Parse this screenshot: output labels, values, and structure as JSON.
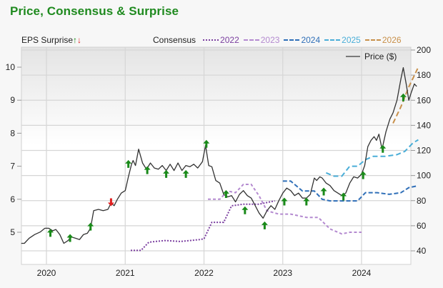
{
  "title": "Price, Consensus & Surprise",
  "legend": {
    "eps_label": "EPS Surprise",
    "eps_up_icon": "↑",
    "eps_down_icon": "↓",
    "consensus_label": "Consensus",
    "consensus_items": [
      {
        "label": "2022",
        "color": "#7b3fa0",
        "dash": "2,2"
      },
      {
        "label": "2023",
        "color": "#b48ad0",
        "dash": "4,3"
      },
      {
        "label": "2024",
        "color": "#2f6fb8",
        "dash": "6,3"
      },
      {
        "label": "2025",
        "color": "#4aaed8",
        "dash": "7,4"
      },
      {
        "label": "2026",
        "color": "#c8904a",
        "dash": "7,4"
      }
    ],
    "price_label": "Price ($)"
  },
  "colors": {
    "title": "#1f8a1f",
    "price": "#333333",
    "eps_up": "#1a8a1a",
    "eps_down": "#e02020",
    "grid": "#d4d4d4"
  },
  "chart_data": {
    "type": "line",
    "title": "Price, Consensus & Surprise",
    "xlabel": "",
    "ylabel_left": "EPS",
    "ylabel_right": "Price ($)",
    "x_ticks": [
      "2020",
      "2021",
      "2022",
      "2023",
      "2024"
    ],
    "y_left_ticks": [
      5,
      6,
      7,
      8,
      9,
      10
    ],
    "y_right_ticks": [
      40,
      60,
      80,
      100,
      120,
      140,
      160,
      180,
      200
    ],
    "xlim": [
      2019.68,
      2024.72
    ],
    "ylim_right": [
      30,
      200
    ],
    "ylim_left": [
      4.2,
      10.5
    ],
    "grid": true,
    "price": {
      "name": "Price ($)",
      "points": [
        [
          2019.68,
          46
        ],
        [
          2019.72,
          46
        ],
        [
          2019.78,
          50
        ],
        [
          2019.85,
          53
        ],
        [
          2019.92,
          55
        ],
        [
          2019.98,
          58
        ],
        [
          2020.03,
          58
        ],
        [
          2020.08,
          56
        ],
        [
          2020.12,
          57
        ],
        [
          2020.17,
          53
        ],
        [
          2020.22,
          46
        ],
        [
          2020.27,
          48
        ],
        [
          2020.32,
          51
        ],
        [
          2020.37,
          50
        ],
        [
          2020.42,
          49
        ],
        [
          2020.47,
          53
        ],
        [
          2020.52,
          54
        ],
        [
          2020.56,
          58
        ],
        [
          2020.6,
          72
        ],
        [
          2020.66,
          73
        ],
        [
          2020.72,
          72
        ],
        [
          2020.78,
          73
        ],
        [
          2020.82,
          78
        ],
        [
          2020.86,
          76
        ],
        [
          2020.9,
          81
        ],
        [
          2020.95,
          86
        ],
        [
          2021.0,
          88
        ],
        [
          2021.04,
          99
        ],
        [
          2021.08,
          109
        ],
        [
          2021.1,
          112
        ],
        [
          2021.13,
          108
        ],
        [
          2021.17,
          121
        ],
        [
          2021.22,
          110
        ],
        [
          2021.27,
          105
        ],
        [
          2021.32,
          110
        ],
        [
          2021.37,
          106
        ],
        [
          2021.42,
          105
        ],
        [
          2021.47,
          108
        ],
        [
          2021.52,
          104
        ],
        [
          2021.57,
          109
        ],
        [
          2021.62,
          104
        ],
        [
          2021.67,
          110
        ],
        [
          2021.72,
          104
        ],
        [
          2021.77,
          108
        ],
        [
          2021.82,
          107
        ],
        [
          2021.87,
          109
        ],
        [
          2021.92,
          106
        ],
        [
          2021.98,
          111
        ],
        [
          2022.02,
          124
        ],
        [
          2022.06,
          108
        ],
        [
          2022.1,
          107
        ],
        [
          2022.15,
          96
        ],
        [
          2022.2,
          94
        ],
        [
          2022.25,
          85
        ],
        [
          2022.3,
          83
        ],
        [
          2022.35,
          84
        ],
        [
          2022.4,
          79
        ],
        [
          2022.45,
          85
        ],
        [
          2022.5,
          88
        ],
        [
          2022.55,
          84
        ],
        [
          2022.6,
          82
        ],
        [
          2022.65,
          76
        ],
        [
          2022.7,
          70
        ],
        [
          2022.75,
          66
        ],
        [
          2022.8,
          72
        ],
        [
          2022.85,
          76
        ],
        [
          2022.9,
          73
        ],
        [
          2022.95,
          80
        ],
        [
          2023.0,
          86
        ],
        [
          2023.05,
          90
        ],
        [
          2023.1,
          88
        ],
        [
          2023.15,
          84
        ],
        [
          2023.2,
          86
        ],
        [
          2023.25,
          82
        ],
        [
          2023.3,
          82
        ],
        [
          2023.35,
          85
        ],
        [
          2023.4,
          98
        ],
        [
          2023.43,
          96
        ],
        [
          2023.47,
          99
        ],
        [
          2023.5,
          98
        ],
        [
          2023.55,
          94
        ],
        [
          2023.6,
          92
        ],
        [
          2023.65,
          88
        ],
        [
          2023.7,
          86
        ],
        [
          2023.75,
          84
        ],
        [
          2023.8,
          86
        ],
        [
          2023.85,
          94
        ],
        [
          2023.9,
          99
        ],
        [
          2023.95,
          98
        ],
        [
          2024.0,
          101
        ],
        [
          2024.04,
          108
        ],
        [
          2024.08,
          123
        ],
        [
          2024.12,
          128
        ],
        [
          2024.16,
          131
        ],
        [
          2024.19,
          128
        ],
        [
          2024.22,
          133
        ],
        [
          2024.26,
          121
        ],
        [
          2024.31,
          135
        ],
        [
          2024.36,
          145
        ],
        [
          2024.4,
          150
        ],
        [
          2024.45,
          160
        ],
        [
          2024.5,
          177
        ],
        [
          2024.53,
          186
        ],
        [
          2024.57,
          172
        ],
        [
          2024.6,
          160
        ],
        [
          2024.63,
          166
        ],
        [
          2024.67,
          173
        ],
        [
          2024.7,
          171
        ]
      ]
    },
    "consensus": [
      {
        "name": "2022",
        "points": [
          [
            2021.07,
            4.45
          ],
          [
            2021.2,
            4.45
          ],
          [
            2021.3,
            4.7
          ],
          [
            2021.5,
            4.75
          ],
          [
            2021.7,
            4.72
          ],
          [
            2021.95,
            4.78
          ],
          [
            2022.0,
            4.8
          ],
          [
            2022.1,
            5.3
          ],
          [
            2022.25,
            5.3
          ],
          [
            2022.35,
            5.8
          ],
          [
            2022.5,
            5.85
          ],
          [
            2022.7,
            5.85
          ],
          [
            2022.9,
            5.95
          ]
        ]
      },
      {
        "name": "2023",
        "points": [
          [
            2022.05,
            6.0
          ],
          [
            2022.2,
            6.0
          ],
          [
            2022.3,
            6.25
          ],
          [
            2022.4,
            6.2
          ],
          [
            2022.5,
            6.45
          ],
          [
            2022.6,
            6.45
          ],
          [
            2022.7,
            6.1
          ],
          [
            2022.8,
            5.65
          ],
          [
            2022.95,
            5.55
          ],
          [
            2023.1,
            5.55
          ],
          [
            2023.3,
            5.45
          ],
          [
            2023.45,
            5.45
          ],
          [
            2023.6,
            5.1
          ],
          [
            2023.75,
            4.95
          ],
          [
            2023.85,
            5.0
          ],
          [
            2024.0,
            5.0
          ]
        ]
      },
      {
        "name": "2024",
        "points": [
          [
            2023.0,
            6.55
          ],
          [
            2023.1,
            6.55
          ],
          [
            2023.25,
            6.25
          ],
          [
            2023.4,
            6.25
          ],
          [
            2023.5,
            6.0
          ],
          [
            2023.6,
            5.95
          ],
          [
            2023.8,
            5.95
          ],
          [
            2023.95,
            5.95
          ],
          [
            2024.05,
            6.2
          ],
          [
            2024.2,
            6.2
          ],
          [
            2024.35,
            6.15
          ],
          [
            2024.5,
            6.2
          ],
          [
            2024.6,
            6.35
          ],
          [
            2024.7,
            6.4
          ]
        ]
      },
      {
        "name": "2025",
        "points": [
          [
            2023.55,
            6.8
          ],
          [
            2023.65,
            6.7
          ],
          [
            2023.75,
            6.7
          ],
          [
            2023.85,
            7.0
          ],
          [
            2023.95,
            7.0
          ],
          [
            2024.05,
            7.2
          ],
          [
            2024.15,
            7.3
          ],
          [
            2024.3,
            7.3
          ],
          [
            2024.45,
            7.35
          ],
          [
            2024.55,
            7.45
          ],
          [
            2024.65,
            7.7
          ],
          [
            2024.72,
            7.8
          ]
        ]
      },
      {
        "name": "2026",
        "points": [
          [
            2024.4,
            8.3
          ],
          [
            2024.5,
            8.8
          ],
          [
            2024.6,
            9.4
          ],
          [
            2024.72,
            10.0
          ]
        ]
      }
    ],
    "eps_surprises": [
      {
        "x": 2020.05,
        "direction": "up",
        "price": 54
      },
      {
        "x": 2020.3,
        "direction": "up",
        "price": 50
      },
      {
        "x": 2020.56,
        "direction": "up",
        "price": 59
      },
      {
        "x": 2020.82,
        "direction": "down",
        "price": 79
      },
      {
        "x": 2021.04,
        "direction": "up",
        "price": 109
      },
      {
        "x": 2021.28,
        "direction": "up",
        "price": 104
      },
      {
        "x": 2021.52,
        "direction": "up",
        "price": 101
      },
      {
        "x": 2021.77,
        "direction": "up",
        "price": 101
      },
      {
        "x": 2022.03,
        "direction": "up",
        "price": 125
      },
      {
        "x": 2022.28,
        "direction": "up",
        "price": 85
      },
      {
        "x": 2022.52,
        "direction": "up",
        "price": 72
      },
      {
        "x": 2022.77,
        "direction": "up",
        "price": 60
      },
      {
        "x": 2023.02,
        "direction": "up",
        "price": 79
      },
      {
        "x": 2023.3,
        "direction": "up",
        "price": 79
      },
      {
        "x": 2023.52,
        "direction": "up",
        "price": 87
      },
      {
        "x": 2023.77,
        "direction": "up",
        "price": 83
      },
      {
        "x": 2024.02,
        "direction": "up",
        "price": 100
      },
      {
        "x": 2024.27,
        "direction": "up",
        "price": 121
      },
      {
        "x": 2024.53,
        "direction": "up",
        "price": 162
      }
    ]
  }
}
